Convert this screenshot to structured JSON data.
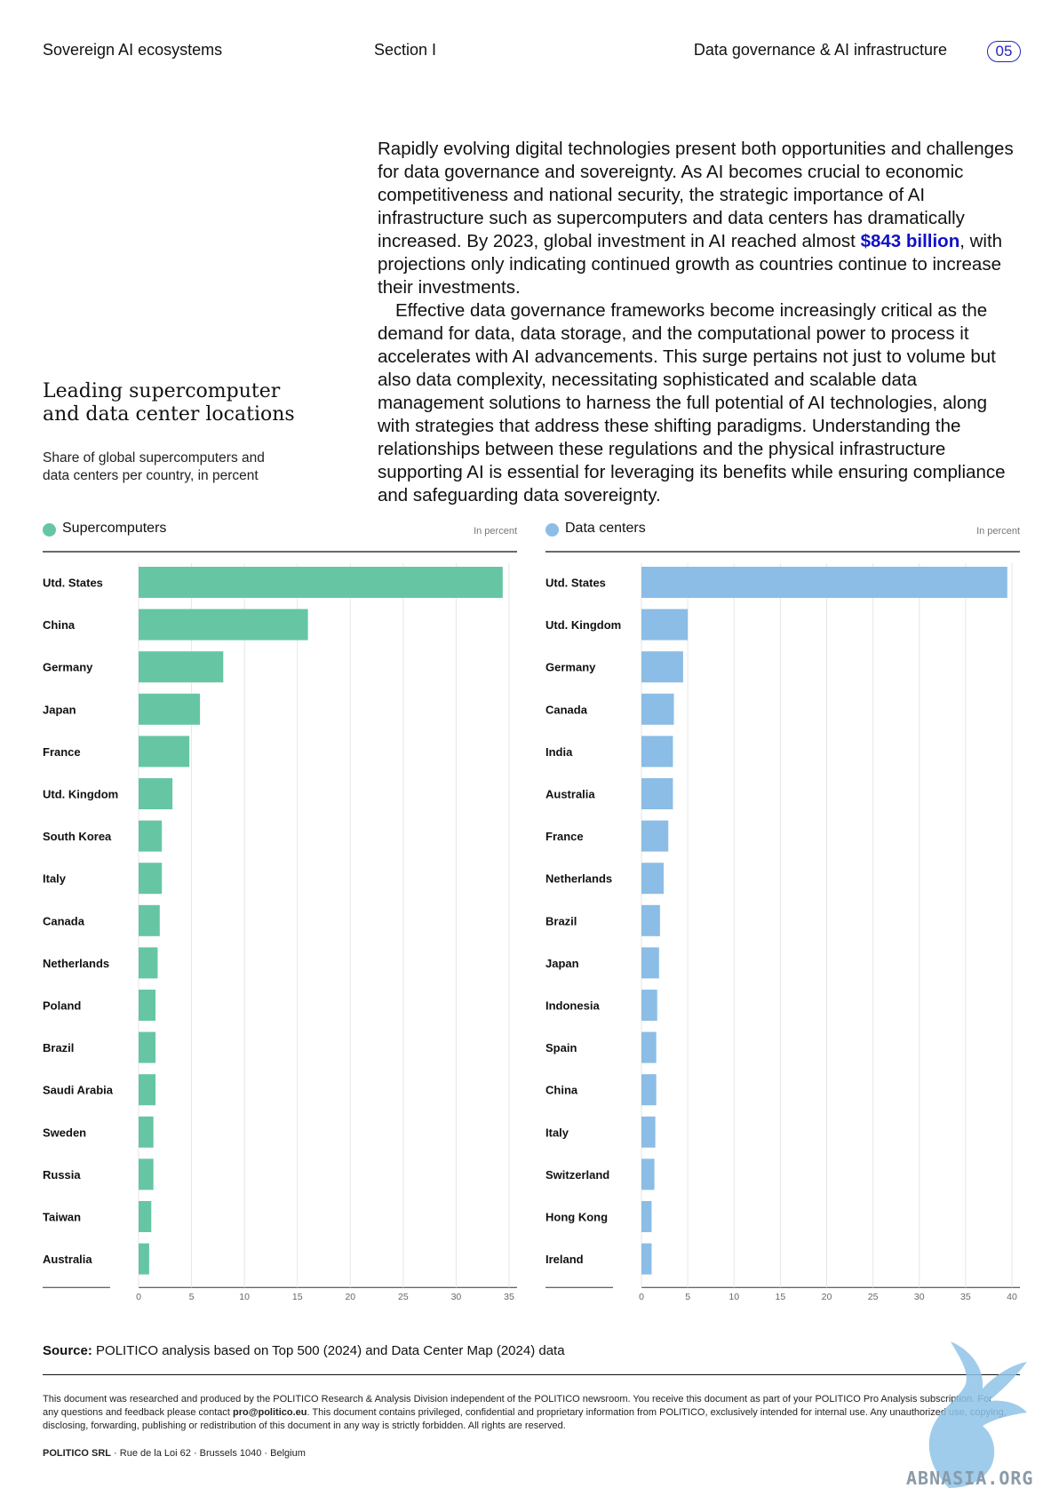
{
  "header": {
    "left": "Sovereign AI ecosystems",
    "middle": "Section I",
    "right": "Data governance & AI infrastructure",
    "page": "05"
  },
  "intro": {
    "p1_before": "Rapidly evolving digital technologies present both opportunities and challenges for data governance and sovereignty. As AI becomes crucial to economic competitiveness and national security, the strategic importance of AI infrastructure such as supercomputers and data centers has dramatically increased. By 2023, global investment in AI reached almost ",
    "p1_highlight": "$843 billion",
    "p1_after": ", with projections only indicating continued growth as countries continue to increase their investments.",
    "p2": "Effective data governance frameworks become increasingly critical as the demand for data, data storage, and the computational power to process it accelerates with AI advancements. This surge pertains not just to volume but also data complexity, necessitating sophisticated and scalable data management solutions to harness the full potential of AI technologies, along with strategies that address these shifting paradigms. Understanding the relationships between these regulations and the physical infrastructure supporting AI is essential for leveraging its benefits while ensuring compliance and safeguarding data sovereignty."
  },
  "sidebar": {
    "title": "Leading supercomputer and data center locations",
    "subtitle": "Share of global supercomputers and data centers per country, in percent"
  },
  "chart_data": [
    {
      "type": "bar",
      "orientation": "horizontal",
      "title": "Supercomputers",
      "unit_label": "In percent",
      "color": "#66c6a4",
      "categories": [
        "Utd. States",
        "China",
        "Germany",
        "Japan",
        "France",
        "Utd. Kingdom",
        "South Korea",
        "Italy",
        "Canada",
        "Netherlands",
        "Poland",
        "Brazil",
        "Saudi Arabia",
        "Sweden",
        "Russia",
        "Taiwan",
        "Australia"
      ],
      "values": [
        34.4,
        16.0,
        8.0,
        5.8,
        4.8,
        3.2,
        2.2,
        2.2,
        2.0,
        1.8,
        1.6,
        1.6,
        1.6,
        1.4,
        1.4,
        1.2,
        1.0
      ],
      "xlim": [
        0,
        35
      ],
      "ticks": [
        0,
        5,
        10,
        15,
        20,
        25,
        30,
        35
      ]
    },
    {
      "type": "bar",
      "orientation": "horizontal",
      "title": "Data centers",
      "unit_label": "In percent",
      "color": "#8bbde6",
      "categories": [
        "Utd. States",
        "Utd. Kingdom",
        "Germany",
        "Canada",
        "India",
        "Australia",
        "France",
        "Netherlands",
        "Brazil",
        "Japan",
        "Indonesia",
        "Spain",
        "China",
        "Italy",
        "Switzerland",
        "Hong Kong",
        "Ireland"
      ],
      "values": [
        39.5,
        5.0,
        4.5,
        3.5,
        3.4,
        3.4,
        2.9,
        2.4,
        2.0,
        1.9,
        1.7,
        1.6,
        1.6,
        1.5,
        1.4,
        1.1,
        1.1
      ],
      "xlim": [
        0,
        40
      ],
      "ticks": [
        0,
        5,
        10,
        15,
        20,
        25,
        30,
        35,
        40
      ]
    }
  ],
  "source": {
    "label": "Source:",
    "text": " POLITICO analysis based on Top 500 (2024) and Data Center Map (2024) data"
  },
  "footer": {
    "disclaimer_1": "This document was researched and produced by the POLITICO Research & Analysis Division independent of the POLITICO newsroom. You receive this document as part of your POLITICO Pro Analysis subscription. For any questions and feedback please contact ",
    "email": "pro@politico.eu",
    "disclaimer_2": ". This document contains privileged, confidential and proprietary information from POLITICO, exclusively intended for internal use. Any unauthorized use, copying, disclosing, forwarding, publishing or redistribution of this document in any way is strictly forbidden. All rights are reserved.",
    "company": "POLITICO SRL",
    "address": " · Rue de la Loi 62 · Brussels 1040 · Belgium"
  },
  "watermark": {
    "text": "ABNASIA.ORG",
    "icon": "winged-lion-icon"
  }
}
